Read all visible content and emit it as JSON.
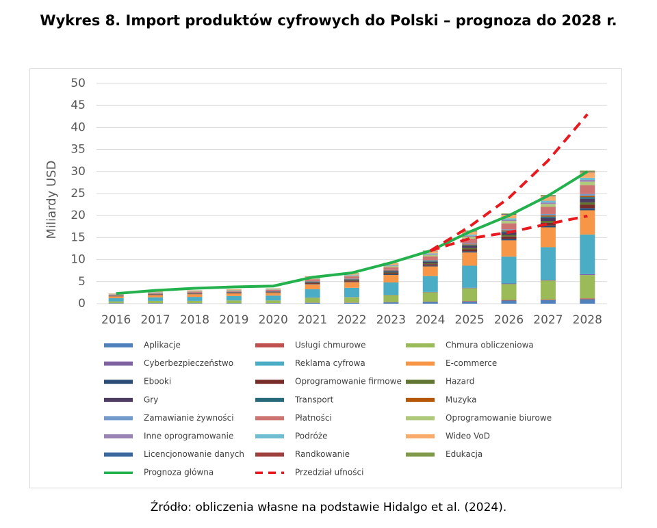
{
  "chart_data": {
    "type": "bar",
    "stacked": true,
    "title": "Wykres 8. Import produktów cyfrowych do Polski – prognoza do 2028 r.",
    "y_label": "Miliardy USD",
    "categories": [
      "2016",
      "2017",
      "2018",
      "2019",
      "2020",
      "2021",
      "2022",
      "2023",
      "2024",
      "2025",
      "2026",
      "2027",
      "2028"
    ],
    "ylim": [
      0,
      50
    ],
    "yticks": [
      0,
      5,
      10,
      15,
      20,
      25,
      30,
      35,
      40,
      45,
      50
    ],
    "grid": true,
    "series": [
      {
        "name": "Aplikacje",
        "color": "#4f81bd",
        "values": [
          0.1,
          0.1,
          0.1,
          0.1,
          0.1,
          0.2,
          0.2,
          0.3,
          0.4,
          0.5,
          0.7,
          0.8,
          1.0
        ]
      },
      {
        "name": "Usługi chmurowe",
        "color": "#c0504d",
        "values": [
          0.02,
          0.02,
          0.02,
          0.02,
          0.02,
          0.04,
          0.05,
          0.06,
          0.08,
          0.11,
          0.14,
          0.16,
          0.2
        ]
      },
      {
        "name": "Chmura obliczeniowa",
        "color": "#9bbb59",
        "values": [
          0.4,
          0.5,
          0.5,
          0.6,
          0.6,
          1.1,
          1.2,
          1.6,
          2.1,
          2.9,
          3.6,
          4.3,
          5.3
        ]
      },
      {
        "name": "Cyberbezpieczeństwo",
        "color": "#8064a2",
        "values": [
          0.02,
          0.02,
          0.02,
          0.02,
          0.02,
          0.04,
          0.05,
          0.06,
          0.08,
          0.11,
          0.14,
          0.16,
          0.2
        ]
      },
      {
        "name": "Reklama cyfrowa",
        "color": "#4bacc6",
        "values": [
          0.7,
          0.8,
          0.9,
          1.0,
          1.1,
          1.9,
          2.1,
          2.8,
          3.6,
          5.0,
          6.1,
          7.4,
          9.0
        ]
      },
      {
        "name": "E-commerce",
        "color": "#f79646",
        "values": [
          0.4,
          0.5,
          0.6,
          0.6,
          0.6,
          1.1,
          1.3,
          1.7,
          2.2,
          3.0,
          3.7,
          4.5,
          5.5
        ]
      },
      {
        "name": "Ebooki",
        "color": "#2c4d75",
        "values": [
          0.04,
          0.05,
          0.05,
          0.05,
          0.06,
          0.1,
          0.1,
          0.15,
          0.2,
          0.28,
          0.34,
          0.41,
          0.5
        ]
      },
      {
        "name": "Oprogramowanie firmowe",
        "color": "#772c2a",
        "values": [
          0.06,
          0.07,
          0.08,
          0.09,
          0.09,
          0.17,
          0.19,
          0.25,
          0.32,
          0.44,
          0.54,
          0.65,
          0.8
        ]
      },
      {
        "name": "Hazard",
        "color": "#5f7530",
        "values": [
          0.04,
          0.05,
          0.05,
          0.05,
          0.06,
          0.1,
          0.1,
          0.15,
          0.2,
          0.28,
          0.34,
          0.41,
          0.5
        ]
      },
      {
        "name": "Gry",
        "color": "#4d3b62",
        "values": [
          0.06,
          0.07,
          0.08,
          0.09,
          0.09,
          0.17,
          0.19,
          0.25,
          0.32,
          0.44,
          0.54,
          0.65,
          0.8
        ]
      },
      {
        "name": "Transport",
        "color": "#276a7c",
        "values": [
          0.03,
          0.04,
          0.04,
          0.04,
          0.05,
          0.08,
          0.09,
          0.12,
          0.16,
          0.22,
          0.27,
          0.33,
          0.4
        ]
      },
      {
        "name": "Muzyka",
        "color": "#b65708",
        "values": [
          0.02,
          0.03,
          0.03,
          0.03,
          0.04,
          0.06,
          0.07,
          0.09,
          0.12,
          0.17,
          0.2,
          0.25,
          0.3
        ]
      },
      {
        "name": "Zamawianie żywności",
        "color": "#729aca",
        "values": [
          0.03,
          0.04,
          0.04,
          0.04,
          0.05,
          0.08,
          0.09,
          0.12,
          0.16,
          0.22,
          0.27,
          0.33,
          0.4
        ]
      },
      {
        "name": "Płatności",
        "color": "#cd7371",
        "values": [
          0.15,
          0.18,
          0.2,
          0.21,
          0.23,
          0.41,
          0.47,
          0.62,
          0.8,
          1.1,
          1.35,
          1.63,
          2.0
        ]
      },
      {
        "name": "Oprogramowanie biurowe",
        "color": "#afc97a",
        "values": [
          0.06,
          0.07,
          0.08,
          0.09,
          0.09,
          0.17,
          0.19,
          0.25,
          0.32,
          0.44,
          0.54,
          0.65,
          0.8
        ]
      },
      {
        "name": "Inne oprogramowanie",
        "color": "#9983b5",
        "values": [
          0.03,
          0.04,
          0.04,
          0.04,
          0.05,
          0.08,
          0.09,
          0.12,
          0.16,
          0.22,
          0.27,
          0.33,
          0.4
        ]
      },
      {
        "name": "Podróże",
        "color": "#6fbdd1",
        "values": [
          0.04,
          0.05,
          0.05,
          0.05,
          0.06,
          0.1,
          0.1,
          0.15,
          0.2,
          0.28,
          0.34,
          0.41,
          0.5
        ]
      },
      {
        "name": "Wideo VoD",
        "color": "#f9ab6b",
        "values": [
          0.09,
          0.11,
          0.12,
          0.13,
          0.14,
          0.25,
          0.28,
          0.37,
          0.48,
          0.66,
          0.81,
          0.98,
          1.2
        ]
      },
      {
        "name": "Licencjonowanie danych",
        "color": "#3a679c",
        "values": [
          0.01,
          0.01,
          0.01,
          0.01,
          0.01,
          0.02,
          0.02,
          0.03,
          0.04,
          0.06,
          0.07,
          0.08,
          0.1
        ]
      },
      {
        "name": "Randkowanie",
        "color": "#9e413e",
        "values": [
          0.01,
          0.01,
          0.01,
          0.01,
          0.01,
          0.02,
          0.02,
          0.03,
          0.04,
          0.06,
          0.07,
          0.08,
          0.1
        ]
      },
      {
        "name": "Edukacja",
        "color": "#7f9a48",
        "values": [
          0.02,
          0.02,
          0.02,
          0.02,
          0.02,
          0.04,
          0.05,
          0.06,
          0.08,
          0.11,
          0.14,
          0.16,
          0.2
        ]
      },
      {
        "name": "Prognoza główna",
        "type": "line",
        "color": "#22b14c",
        "values": [
          2.3,
          3.0,
          3.5,
          3.8,
          4.0,
          6.0,
          7.0,
          9.3,
          12.0,
          16.3,
          20.0,
          24.5,
          30.0
        ]
      },
      {
        "name": "Przedział ufności",
        "type": "line",
        "dashed": true,
        "color": "#e8191f",
        "values": [
          null,
          null,
          null,
          null,
          null,
          null,
          null,
          null,
          12.0,
          14.8,
          16.2,
          18.1,
          19.9
        ],
        "upper": [
          null,
          null,
          null,
          null,
          null,
          null,
          null,
          null,
          12.0,
          17.5,
          24.0,
          32.5,
          43.0
        ]
      }
    ]
  },
  "source": "Źródło: obliczenia własne na podstawie Hidalgo et al. (2024)."
}
